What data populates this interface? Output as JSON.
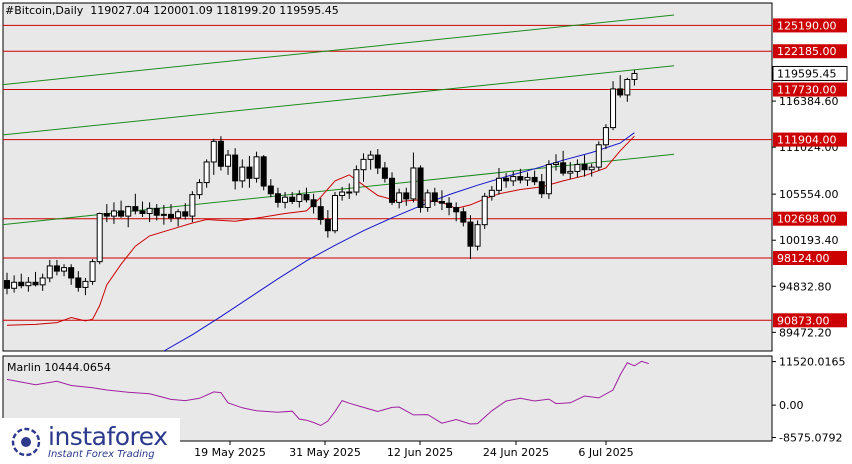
{
  "header": {
    "symbol": "#Bitcoin,Daily",
    "ohlc": "119027.04 120001.09 118199.20 119595.45"
  },
  "indicator": {
    "label": "Marlin 10444.0654"
  },
  "logo": {
    "name": "instaforex",
    "tagline": "Instant Forex Trading",
    "icon": "instaforex-logo-icon"
  },
  "colors": {
    "background": "#ffffff",
    "plot_bg": "#e8e8e8",
    "bull": "#ffffff",
    "bear": "#000000",
    "level_line": "#cc0000",
    "channel_line": "#1e8a1e",
    "ma_slow": "#1515cc",
    "ma_fast": "#cc0000",
    "oscillator": "#a020a0",
    "highlight": "#cc0000"
  },
  "chart_data": [
    {
      "type": "candlestick",
      "title": "#Bitcoin,Daily",
      "y_axis_ticks": [
        "116384.60",
        "111024.00",
        "105554.00",
        "100193.40",
        "94832.80",
        "89472.20"
      ],
      "ylim": [
        87300,
        127800
      ],
      "x_axis_ticks": [
        "19 May 2025",
        "31 May 2025",
        "12 Jun 2025",
        "24 Jun 2025",
        "6 Jul 2025"
      ],
      "current_price": "119595.45",
      "levels": [
        {
          "value": 125190,
          "label": "125190.00"
        },
        {
          "value": 122185,
          "label": "122185.00"
        },
        {
          "value": 117730,
          "label": "117730.00"
        },
        {
          "value": 111904,
          "label": "111904.00"
        },
        {
          "value": 102698,
          "label": "102698.00"
        },
        {
          "value": 98124,
          "label": "98124.00"
        },
        {
          "value": 90873,
          "label": "90873.00"
        }
      ],
      "channel_lines": [
        {
          "name": "upper",
          "x": [
            0,
            93
          ],
          "y": [
            118300,
            126400
          ]
        },
        {
          "name": "middle",
          "x": [
            0,
            93
          ],
          "y": [
            112450,
            120500
          ]
        },
        {
          "name": "lower",
          "x": [
            0,
            93
          ],
          "y": [
            102000,
            110200
          ]
        }
      ],
      "candles": [
        {
          "o": 95500,
          "h": 96400,
          "l": 93900,
          "c": 94600
        },
        {
          "o": 94600,
          "h": 96100,
          "l": 94100,
          "c": 95300
        },
        {
          "o": 95300,
          "h": 96300,
          "l": 94600,
          "c": 94900
        },
        {
          "o": 94900,
          "h": 95900,
          "l": 94200,
          "c": 95300
        },
        {
          "o": 95300,
          "h": 96500,
          "l": 94800,
          "c": 95000
        },
        {
          "o": 95000,
          "h": 96300,
          "l": 94300,
          "c": 95800
        },
        {
          "o": 95800,
          "h": 97900,
          "l": 95300,
          "c": 97200
        },
        {
          "o": 97200,
          "h": 97900,
          "l": 96100,
          "c": 96600
        },
        {
          "o": 96600,
          "h": 97400,
          "l": 96000,
          "c": 97000
        },
        {
          "o": 97000,
          "h": 97400,
          "l": 95000,
          "c": 95800
        },
        {
          "o": 95800,
          "h": 96600,
          "l": 94200,
          "c": 94700
        },
        {
          "o": 94700,
          "h": 95800,
          "l": 93800,
          "c": 95400
        },
        {
          "o": 95400,
          "h": 98000,
          "l": 95000,
          "c": 97700
        },
        {
          "o": 97700,
          "h": 103400,
          "l": 97400,
          "c": 103300
        },
        {
          "o": 103300,
          "h": 104400,
          "l": 102300,
          "c": 103000
        },
        {
          "o": 103000,
          "h": 104600,
          "l": 102100,
          "c": 103600
        },
        {
          "o": 103600,
          "h": 104800,
          "l": 102800,
          "c": 103000
        },
        {
          "o": 103000,
          "h": 104200,
          "l": 101700,
          "c": 104100
        },
        {
          "o": 104100,
          "h": 105600,
          "l": 103200,
          "c": 103600
        },
        {
          "o": 103600,
          "h": 104700,
          "l": 102900,
          "c": 103300
        },
        {
          "o": 103300,
          "h": 104600,
          "l": 102300,
          "c": 103900
        },
        {
          "o": 103900,
          "h": 104400,
          "l": 102500,
          "c": 103100
        },
        {
          "o": 103100,
          "h": 104300,
          "l": 102000,
          "c": 103200
        },
        {
          "o": 103200,
          "h": 104400,
          "l": 102300,
          "c": 102800
        },
        {
          "o": 102800,
          "h": 103800,
          "l": 101800,
          "c": 103500
        },
        {
          "o": 103500,
          "h": 104500,
          "l": 102600,
          "c": 103000
        },
        {
          "o": 103000,
          "h": 105900,
          "l": 102300,
          "c": 105500
        },
        {
          "o": 105500,
          "h": 107300,
          "l": 105000,
          "c": 106900
        },
        {
          "o": 106900,
          "h": 109600,
          "l": 106300,
          "c": 109300
        },
        {
          "o": 109300,
          "h": 112000,
          "l": 107800,
          "c": 111700
        },
        {
          "o": 111700,
          "h": 112300,
          "l": 108300,
          "c": 108800
        },
        {
          "o": 108800,
          "h": 110700,
          "l": 107800,
          "c": 110100
        },
        {
          "o": 110100,
          "h": 110900,
          "l": 106100,
          "c": 107100
        },
        {
          "o": 107100,
          "h": 109600,
          "l": 106300,
          "c": 108700
        },
        {
          "o": 108700,
          "h": 110000,
          "l": 106300,
          "c": 107400
        },
        {
          "o": 107400,
          "h": 110500,
          "l": 106900,
          "c": 109900
        },
        {
          "o": 109900,
          "h": 110100,
          "l": 106000,
          "c": 106500
        },
        {
          "o": 106500,
          "h": 107300,
          "l": 105200,
          "c": 105600
        },
        {
          "o": 105600,
          "h": 106300,
          "l": 104000,
          "c": 104600
        },
        {
          "o": 104600,
          "h": 105800,
          "l": 103900,
          "c": 105200
        },
        {
          "o": 105200,
          "h": 105800,
          "l": 104400,
          "c": 104700
        },
        {
          "o": 104700,
          "h": 106000,
          "l": 104000,
          "c": 105500
        },
        {
          "o": 105500,
          "h": 106300,
          "l": 104600,
          "c": 104900
        },
        {
          "o": 104900,
          "h": 105600,
          "l": 103300,
          "c": 104100
        },
        {
          "o": 104100,
          "h": 105100,
          "l": 102000,
          "c": 102600
        },
        {
          "o": 102600,
          "h": 103700,
          "l": 100500,
          "c": 101300
        },
        {
          "o": 101300,
          "h": 105800,
          "l": 101000,
          "c": 105400
        },
        {
          "o": 105400,
          "h": 106400,
          "l": 104800,
          "c": 105800
        },
        {
          "o": 105800,
          "h": 106800,
          "l": 105000,
          "c": 105800
        },
        {
          "o": 105800,
          "h": 108900,
          "l": 105400,
          "c": 108400
        },
        {
          "o": 108400,
          "h": 110300,
          "l": 107000,
          "c": 109600
        },
        {
          "o": 109600,
          "h": 110600,
          "l": 108400,
          "c": 110100
        },
        {
          "o": 110100,
          "h": 110800,
          "l": 107900,
          "c": 108600
        },
        {
          "o": 108600,
          "h": 109300,
          "l": 106900,
          "c": 107400
        },
        {
          "o": 107400,
          "h": 108100,
          "l": 104300,
          "c": 104600
        },
        {
          "o": 104600,
          "h": 106200,
          "l": 103900,
          "c": 105700
        },
        {
          "o": 105700,
          "h": 106300,
          "l": 104200,
          "c": 105000
        },
        {
          "o": 105000,
          "h": 110400,
          "l": 104600,
          "c": 108600
        },
        {
          "o": 108600,
          "h": 108900,
          "l": 103400,
          "c": 104000
        },
        {
          "o": 104000,
          "h": 106100,
          "l": 103500,
          "c": 105700
        },
        {
          "o": 105700,
          "h": 106300,
          "l": 104200,
          "c": 104700
        },
        {
          "o": 104700,
          "h": 106000,
          "l": 103700,
          "c": 104500
        },
        {
          "o": 104500,
          "h": 105200,
          "l": 103100,
          "c": 104000
        },
        {
          "o": 104000,
          "h": 104600,
          "l": 102400,
          "c": 103500
        },
        {
          "o": 103500,
          "h": 104000,
          "l": 101800,
          "c": 102300
        },
        {
          "o": 102300,
          "h": 103100,
          "l": 98000,
          "c": 99500
        },
        {
          "o": 99500,
          "h": 102500,
          "l": 99000,
          "c": 102000
        },
        {
          "o": 102000,
          "h": 105700,
          "l": 101500,
          "c": 105300
        },
        {
          "o": 105300,
          "h": 106500,
          "l": 104800,
          "c": 106000
        },
        {
          "o": 106000,
          "h": 108600,
          "l": 105500,
          "c": 107400
        },
        {
          "o": 107400,
          "h": 108000,
          "l": 106300,
          "c": 107100
        },
        {
          "o": 107100,
          "h": 108200,
          "l": 106500,
          "c": 107600
        },
        {
          "o": 107600,
          "h": 108500,
          "l": 106800,
          "c": 107200
        },
        {
          "o": 107200,
          "h": 108100,
          "l": 106500,
          "c": 107500
        },
        {
          "o": 107500,
          "h": 108300,
          "l": 106600,
          "c": 107000
        },
        {
          "o": 107000,
          "h": 107900,
          "l": 105100,
          "c": 105600
        },
        {
          "o": 105600,
          "h": 109500,
          "l": 105000,
          "c": 109000
        },
        {
          "o": 109000,
          "h": 110200,
          "l": 108300,
          "c": 109200
        },
        {
          "o": 109200,
          "h": 110600,
          "l": 107700,
          "c": 108000
        },
        {
          "o": 108000,
          "h": 109300,
          "l": 107300,
          "c": 108200
        },
        {
          "o": 108200,
          "h": 109600,
          "l": 107500,
          "c": 109000
        },
        {
          "o": 109000,
          "h": 110100,
          "l": 107600,
          "c": 108400
        },
        {
          "o": 108400,
          "h": 109100,
          "l": 107600,
          "c": 108700
        },
        {
          "o": 108700,
          "h": 111700,
          "l": 108300,
          "c": 111300
        },
        {
          "o": 111300,
          "h": 113700,
          "l": 110800,
          "c": 113300
        },
        {
          "o": 113300,
          "h": 118700,
          "l": 113000,
          "c": 117800
        },
        {
          "o": 117800,
          "h": 119400,
          "l": 116800,
          "c": 117100
        },
        {
          "o": 117100,
          "h": 119100,
          "l": 116300,
          "c": 118900
        },
        {
          "o": 118900,
          "h": 120000,
          "l": 118200,
          "c": 119600
        }
      ],
      "ma_fast": [
        {
          "x": 0,
          "y": 90300
        },
        {
          "x": 4,
          "y": 90400
        },
        {
          "x": 7,
          "y": 90600
        },
        {
          "x": 9,
          "y": 91200
        },
        {
          "x": 11,
          "y": 90800
        },
        {
          "x": 12,
          "y": 91000
        },
        {
          "x": 13,
          "y": 92600
        },
        {
          "x": 14,
          "y": 95000
        },
        {
          "x": 16,
          "y": 97400
        },
        {
          "x": 18,
          "y": 99500
        },
        {
          "x": 20,
          "y": 100700
        },
        {
          "x": 24,
          "y": 101700
        },
        {
          "x": 26,
          "y": 102200
        },
        {
          "x": 28,
          "y": 102600
        },
        {
          "x": 32,
          "y": 102400
        },
        {
          "x": 36,
          "y": 102900
        },
        {
          "x": 39,
          "y": 103300
        },
        {
          "x": 42,
          "y": 103600
        },
        {
          "x": 44,
          "y": 105200
        },
        {
          "x": 46,
          "y": 107100
        },
        {
          "x": 48,
          "y": 107800
        },
        {
          "x": 50,
          "y": 106600
        },
        {
          "x": 52,
          "y": 105400
        },
        {
          "x": 55,
          "y": 104700
        },
        {
          "x": 58,
          "y": 104900
        },
        {
          "x": 61,
          "y": 104600
        },
        {
          "x": 63,
          "y": 103900
        },
        {
          "x": 65,
          "y": 104300
        },
        {
          "x": 67,
          "y": 105000
        },
        {
          "x": 69,
          "y": 105600
        },
        {
          "x": 72,
          "y": 106100
        },
        {
          "x": 75,
          "y": 106400
        },
        {
          "x": 78,
          "y": 107100
        },
        {
          "x": 81,
          "y": 107700
        },
        {
          "x": 84,
          "y": 108600
        },
        {
          "x": 86,
          "y": 110600
        },
        {
          "x": 88,
          "y": 112300
        }
      ],
      "ma_slow": [
        {
          "x": 22,
          "y": 87300
        },
        {
          "x": 26,
          "y": 89200
        },
        {
          "x": 30,
          "y": 91300
        },
        {
          "x": 34,
          "y": 93500
        },
        {
          "x": 38,
          "y": 95700
        },
        {
          "x": 42,
          "y": 97800
        },
        {
          "x": 46,
          "y": 99600
        },
        {
          "x": 50,
          "y": 101300
        },
        {
          "x": 54,
          "y": 102800
        },
        {
          "x": 58,
          "y": 104200
        },
        {
          "x": 62,
          "y": 105500
        },
        {
          "x": 66,
          "y": 106600
        },
        {
          "x": 70,
          "y": 107600
        },
        {
          "x": 74,
          "y": 108500
        },
        {
          "x": 78,
          "y": 109500
        },
        {
          "x": 82,
          "y": 110400
        },
        {
          "x": 86,
          "y": 111500
        },
        {
          "x": 88,
          "y": 112700
        }
      ]
    },
    {
      "type": "line",
      "title": "Marlin 10444.0654",
      "y_axis_ticks": [
        "11520.0165",
        "0.00",
        "-8575.0792"
      ],
      "ylim": [
        -9500,
        13000
      ],
      "series": [
        {
          "name": "Marlin",
          "values": [
            {
              "x": 0,
              "y": 6800
            },
            {
              "x": 4,
              "y": 5400
            },
            {
              "x": 7,
              "y": 6300
            },
            {
              "x": 9,
              "y": 5200
            },
            {
              "x": 12,
              "y": 4600
            },
            {
              "x": 14,
              "y": 4000
            },
            {
              "x": 17,
              "y": 3400
            },
            {
              "x": 20,
              "y": 3000
            },
            {
              "x": 23,
              "y": 1500
            },
            {
              "x": 25,
              "y": 1200
            },
            {
              "x": 27,
              "y": 1800
            },
            {
              "x": 29,
              "y": 3500
            },
            {
              "x": 30,
              "y": 3300
            },
            {
              "x": 31,
              "y": 600
            },
            {
              "x": 33,
              "y": -700
            },
            {
              "x": 35,
              "y": -1500
            },
            {
              "x": 38,
              "y": -1900
            },
            {
              "x": 40,
              "y": -1600
            },
            {
              "x": 41,
              "y": -3700
            },
            {
              "x": 42,
              "y": -4000
            },
            {
              "x": 43,
              "y": -4600
            },
            {
              "x": 44,
              "y": -5400
            },
            {
              "x": 45,
              "y": -4200
            },
            {
              "x": 46,
              "y": -1700
            },
            {
              "x": 47,
              "y": 1200
            },
            {
              "x": 48,
              "y": 500
            },
            {
              "x": 50,
              "y": -600
            },
            {
              "x": 52,
              "y": -1700
            },
            {
              "x": 54,
              "y": -600
            },
            {
              "x": 55,
              "y": -500
            },
            {
              "x": 57,
              "y": -2600
            },
            {
              "x": 59,
              "y": -2500
            },
            {
              "x": 61,
              "y": -4800
            },
            {
              "x": 63,
              "y": -3800
            },
            {
              "x": 65,
              "y": -5000
            },
            {
              "x": 66,
              "y": -4900
            },
            {
              "x": 68,
              "y": -1500
            },
            {
              "x": 70,
              "y": 1100
            },
            {
              "x": 72,
              "y": 1800
            },
            {
              "x": 74,
              "y": 1100
            },
            {
              "x": 76,
              "y": 1600
            },
            {
              "x": 77,
              "y": 400
            },
            {
              "x": 79,
              "y": 600
            },
            {
              "x": 81,
              "y": 2400
            },
            {
              "x": 83,
              "y": 1900
            },
            {
              "x": 85,
              "y": 4000
            },
            {
              "x": 86,
              "y": 8000
            },
            {
              "x": 87,
              "y": 11200
            },
            {
              "x": 88,
              "y": 10400
            },
            {
              "x": 89,
              "y": 11600
            },
            {
              "x": 90,
              "y": 11000
            }
          ]
        }
      ]
    }
  ]
}
